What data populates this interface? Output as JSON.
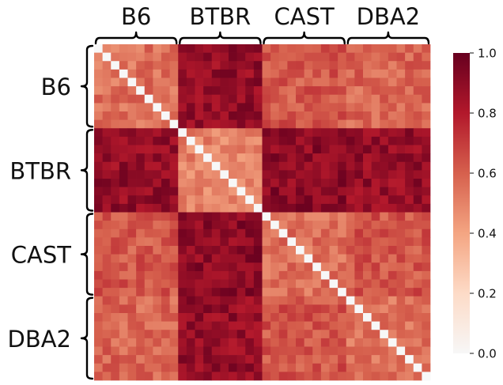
{
  "chart_data": {
    "type": "heatmap",
    "groups": [
      "B6",
      "BTBR",
      "CAST",
      "DBA2"
    ],
    "samples_per_group": 10,
    "matrix_size": 40,
    "block_mean_values": [
      [
        0.55,
        0.88,
        0.62,
        0.58
      ],
      [
        0.88,
        0.5,
        0.9,
        0.88
      ],
      [
        0.62,
        0.9,
        0.55,
        0.63
      ],
      [
        0.58,
        0.88,
        0.63,
        0.55
      ]
    ],
    "diagonal_value": 0.0,
    "colorbar": {
      "colormap": "RdBu_r (upper half)",
      "min": 0.0,
      "max": 1.0,
      "ticks": [
        "0.0",
        "0.2",
        "0.4",
        "0.6",
        "0.8",
        "1.0"
      ],
      "stops": [
        "#f7f7f7",
        "#fddbc7",
        "#f4a582",
        "#d6604d",
        "#b2182b",
        "#67001f"
      ]
    },
    "title": "",
    "xlabel": "",
    "ylabel": ""
  }
}
